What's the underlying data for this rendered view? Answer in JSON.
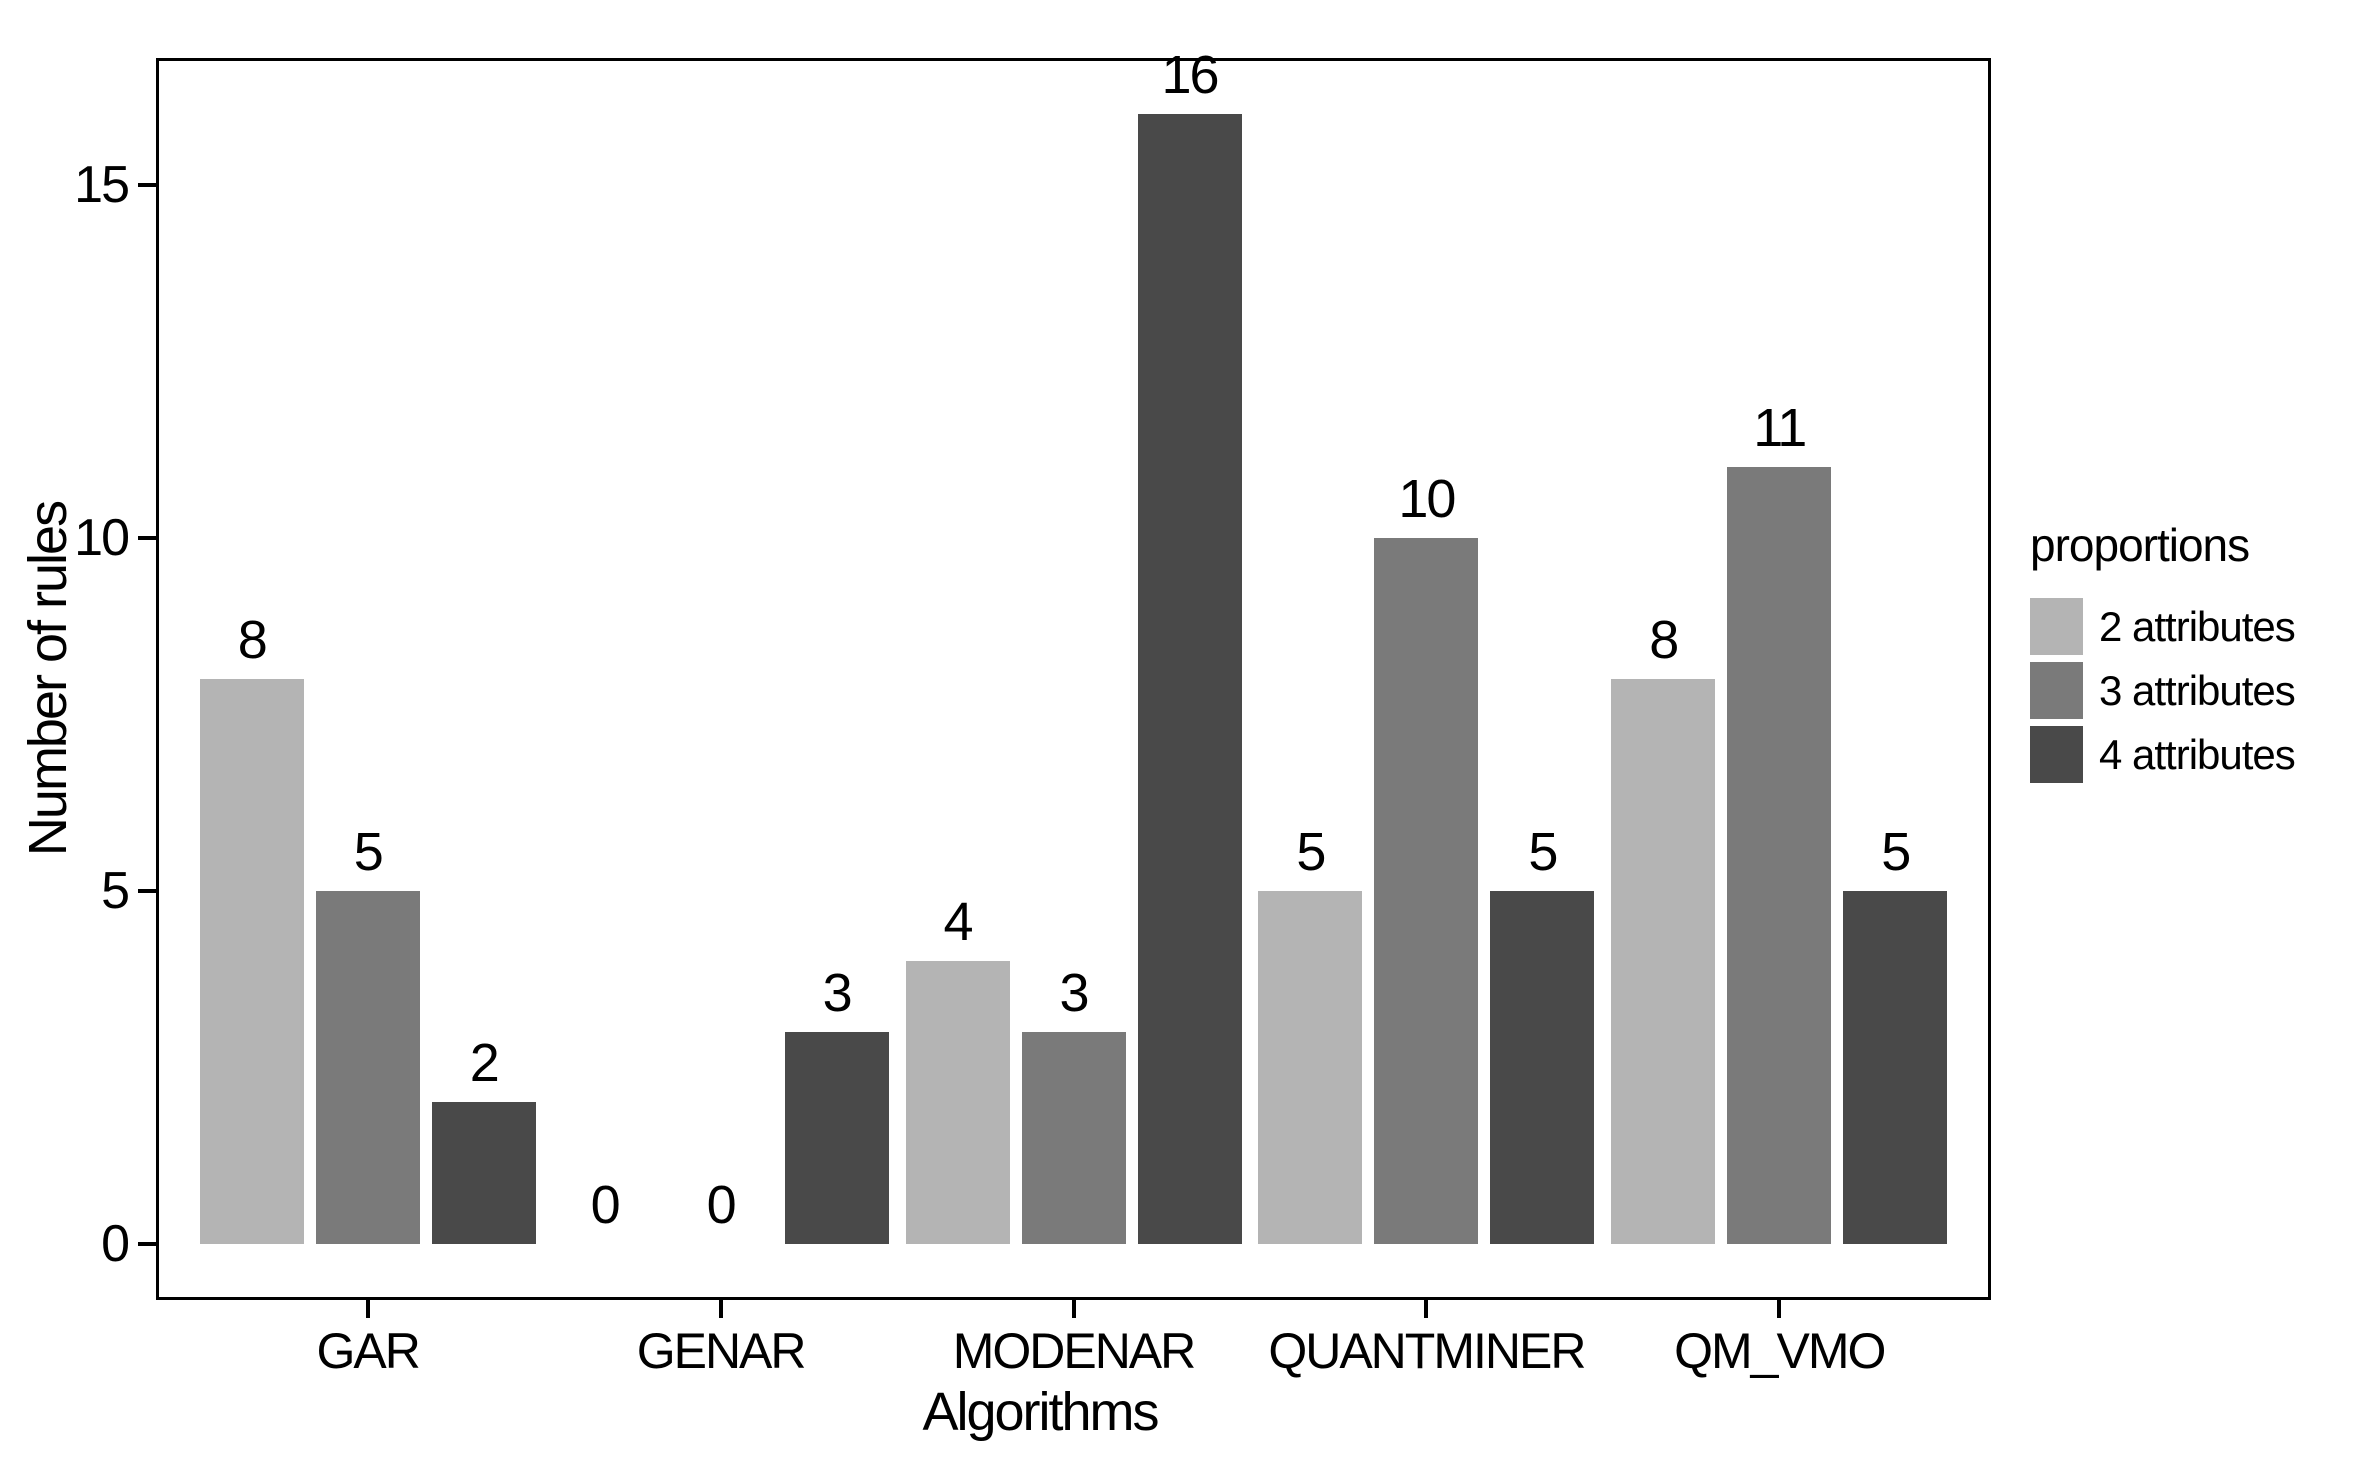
{
  "chart_data": {
    "type": "bar",
    "title": "",
    "categories": [
      "GAR",
      "GENAR",
      "MODENAR",
      "QUANTMINER",
      "QM_VMO"
    ],
    "series": [
      {
        "name": "2 attributes",
        "color": "#b4b4b4",
        "values": [
          8,
          0,
          4,
          5,
          8
        ]
      },
      {
        "name": "3 attributes",
        "color": "#7a7a7a",
        "values": [
          5,
          0,
          3,
          10,
          11
        ]
      },
      {
        "name": "4 attributes",
        "color": "#494949",
        "values": [
          2,
          3,
          16,
          5,
          5
        ]
      }
    ],
    "xlabel": "Algorithms",
    "ylabel": "Number of rules",
    "y_ticks": [
      0,
      5,
      10,
      15
    ],
    "ylim": [
      -0.8,
      16.8
    ],
    "bar_value_labels": [
      [
        "8",
        "0",
        "4",
        "5",
        "8"
      ],
      [
        "5",
        "0",
        "3",
        "10",
        "11"
      ],
      [
        "2",
        "3",
        "16",
        "5",
        "5"
      ]
    ],
    "legend": {
      "title": "proportions",
      "position": "right",
      "entries": [
        "2 attributes",
        "3 attributes",
        "4 attributes"
      ]
    },
    "grid": false,
    "background_color": "#ffffff",
    "axis_color": "#000000",
    "text_color": "#000000"
  }
}
